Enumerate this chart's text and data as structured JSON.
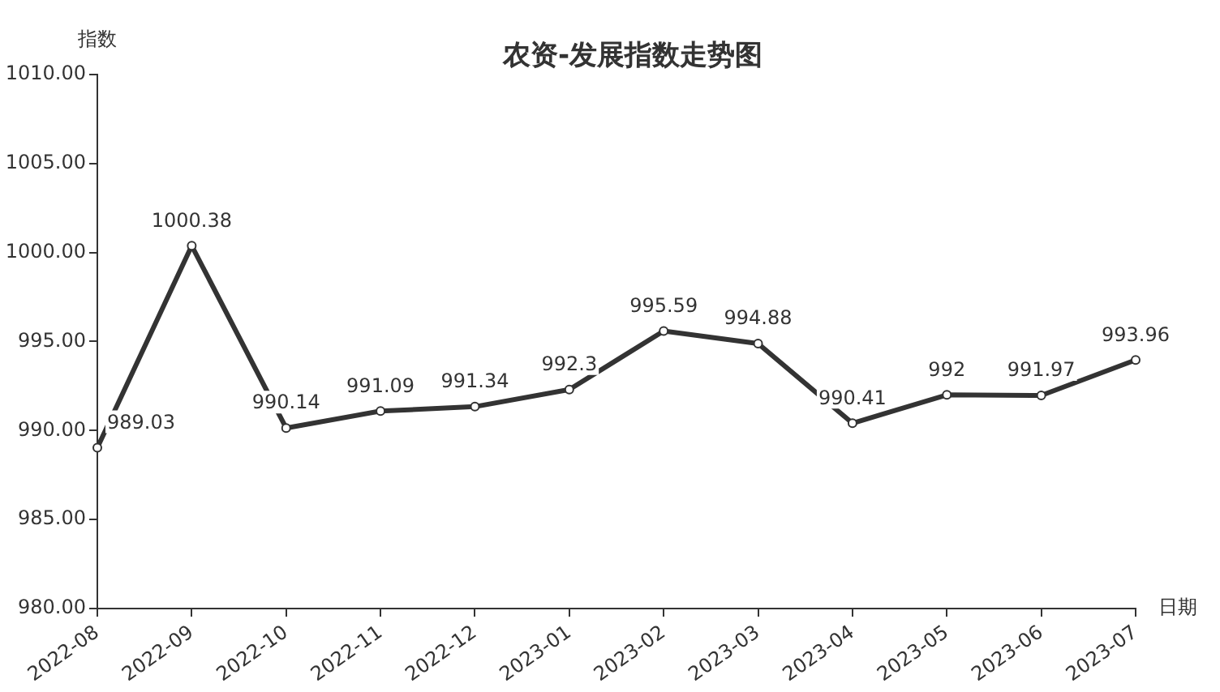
{
  "chart_data": {
    "type": "line",
    "title": "农资-发展指数走势图",
    "xlabel": "日期",
    "ylabel": "指数",
    "categories": [
      "2022-08",
      "2022-09",
      "2022-10",
      "2022-11",
      "2022-12",
      "2023-01",
      "2023-02",
      "2023-03",
      "2023-04",
      "2023-05",
      "2023-06",
      "2023-07"
    ],
    "series": [
      {
        "color": "#333333",
        "values": [
          989.03,
          1000.38,
          990.14,
          991.09,
          991.34,
          992.3,
          995.59,
          994.88,
          990.41,
          992,
          991.97,
          993.96
        ]
      }
    ],
    "ylim": [
      980,
      1010
    ],
    "yticks": [
      {
        "value": 980,
        "label": "980.00"
      },
      {
        "value": 985,
        "label": "985.00"
      },
      {
        "value": 990,
        "label": "990.00"
      },
      {
        "value": 995,
        "label": "995.00"
      },
      {
        "value": 1000,
        "label": "1000.00"
      },
      {
        "value": 1005,
        "label": "1005.00"
      },
      {
        "value": 1010,
        "label": "1010.00"
      }
    ],
    "grid": false,
    "legend": false,
    "marker": "circle",
    "line_style": "solid",
    "data_labels": true
  }
}
